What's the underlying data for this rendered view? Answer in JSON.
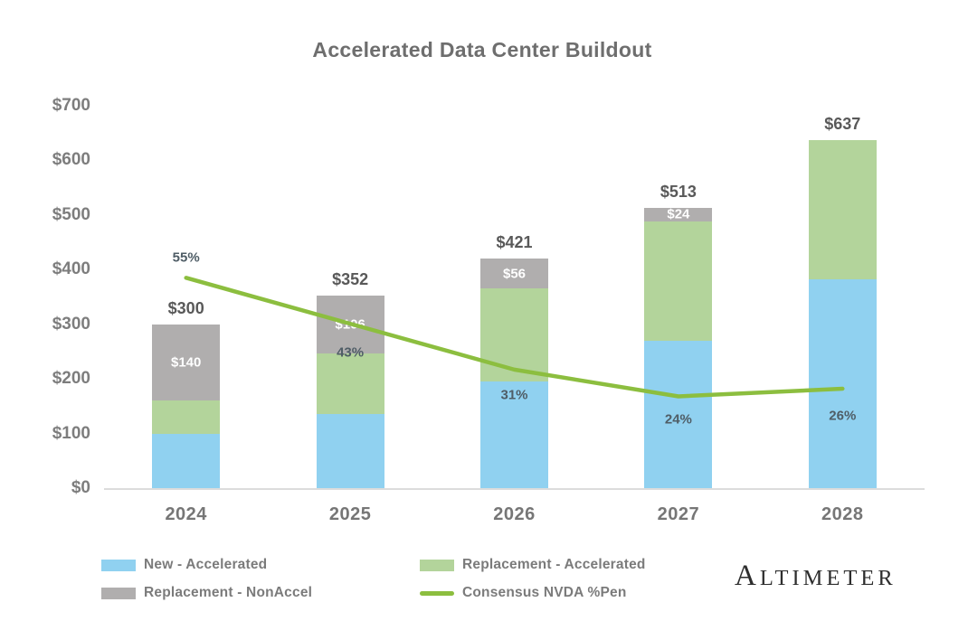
{
  "title": "Accelerated Data Center Buildout",
  "brand": "ALTIMETER",
  "chart_data": {
    "type": "bar",
    "subtype": "stacked-bar-with-line",
    "title": "Accelerated Data Center Buildout",
    "categories": [
      "2024",
      "2025",
      "2026",
      "2027",
      "2028"
    ],
    "series": [
      {
        "name": "New - Accelerated",
        "color": "#90d1f0",
        "values": [
          100,
          136,
          195,
          270,
          383
        ]
      },
      {
        "name": "Replacement - Accelerated",
        "color": "#b3d49b",
        "values": [
          60,
          110,
          170,
          219,
          254
        ]
      },
      {
        "name": "Replacement - NonAccel",
        "color": "#b0aeae",
        "values": [
          140,
          106,
          56,
          24,
          0
        ],
        "labels": [
          "$140",
          "$106",
          "$56",
          "$24",
          ""
        ]
      }
    ],
    "totals": [
      300,
      352,
      421,
      513,
      637
    ],
    "total_labels": [
      "$300",
      "$352",
      "$421",
      "$513",
      "$637"
    ],
    "line": {
      "name": "Consensus NVDA %Pen",
      "color": "#8cbe3f",
      "values": [
        55,
        43,
        31,
        24,
        26
      ],
      "labels": [
        "55%",
        "43%",
        "31%",
        "24%",
        "26%"
      ]
    },
    "y_axis": {
      "ticks": [
        "$0",
        "$100",
        "$200",
        "$300",
        "$400",
        "$500",
        "$600",
        "$700"
      ],
      "min": 0,
      "max": 700,
      "grid": false
    },
    "line_axis": {
      "min": 0,
      "max": 100,
      "hidden": true
    },
    "legend_position": "bottom-left"
  },
  "legend": {
    "items": [
      {
        "label": "New - Accelerated",
        "type": "swatch",
        "color": "#90d1f0"
      },
      {
        "label": "Replacement - Accelerated",
        "type": "swatch",
        "color": "#b3d49b"
      },
      {
        "label": "Replacement - NonAccel",
        "type": "swatch",
        "color": "#b0aeae"
      },
      {
        "label": "Consensus NVDA %Pen",
        "type": "line",
        "color": "#8cbe3f"
      }
    ]
  }
}
